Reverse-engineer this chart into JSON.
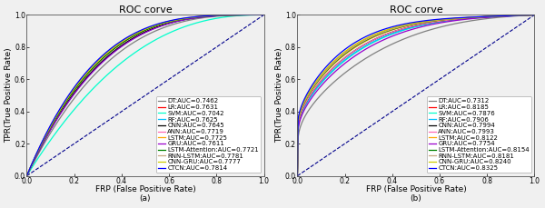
{
  "title": "ROC corve",
  "xlabel": "FRP (False Positive Rate)",
  "ylabel": "TPR(True Positive Rate)",
  "subplot_a_label": "(a)",
  "subplot_b_label": "(b)",
  "subplot_a": {
    "algorithms": [
      {
        "name": "DT",
        "auc": 0.7462,
        "color": "#808080",
        "shape": 0.0
      },
      {
        "name": "LR",
        "auc": 0.7631,
        "color": "#ff0000",
        "shape": 0.0
      },
      {
        "name": "SVM",
        "auc": 0.7042,
        "color": "#00ffcc",
        "shape": 0.0
      },
      {
        "name": "RF",
        "auc": 0.7625,
        "color": "#00bfff",
        "shape": 0.0
      },
      {
        "name": "CNN",
        "auc": 0.7645,
        "color": "#000000",
        "shape": 0.0
      },
      {
        "name": "ANN",
        "auc": 0.7719,
        "color": "#ff69b4",
        "shape": 0.0
      },
      {
        "name": "LSTM",
        "auc": 0.7725,
        "color": "#ffa500",
        "shape": 0.0
      },
      {
        "name": "GRU",
        "auc": 0.7611,
        "color": "#9900cc",
        "shape": 0.0
      },
      {
        "name": "LSTM-Attention",
        "auc": 0.7721,
        "color": "#008000",
        "shape": 0.0
      },
      {
        "name": "RNN-LSTM",
        "auc": 0.7781,
        "color": "#c8a882",
        "shape": 0.0
      },
      {
        "name": "CNN-GRU",
        "auc": 0.7777,
        "color": "#cccc00",
        "shape": 0.0
      },
      {
        "name": "CTCN",
        "auc": 0.7814,
        "color": "#0000ff",
        "shape": 0.0
      }
    ]
  },
  "subplot_b": {
    "algorithms": [
      {
        "name": "DT",
        "auc": 0.7312,
        "color": "#808080",
        "shape": 1.0
      },
      {
        "name": "LR",
        "auc": 0.8185,
        "color": "#ff0000",
        "shape": 1.0
      },
      {
        "name": "SVM",
        "auc": 0.7876,
        "color": "#00ffcc",
        "shape": 1.0
      },
      {
        "name": "RF",
        "auc": 0.7906,
        "color": "#00bfff",
        "shape": 1.0
      },
      {
        "name": "CNN",
        "auc": 0.7994,
        "color": "#000000",
        "shape": 1.0
      },
      {
        "name": "ANN",
        "auc": 0.7993,
        "color": "#ff69b4",
        "shape": 1.0
      },
      {
        "name": "LSTM",
        "auc": 0.8122,
        "color": "#ffa500",
        "shape": 1.0
      },
      {
        "name": "GRU",
        "auc": 0.7754,
        "color": "#9900cc",
        "shape": 1.0
      },
      {
        "name": "LSTM-Attention",
        "auc": 0.8154,
        "color": "#008000",
        "shape": 1.0
      },
      {
        "name": "RNN-LSTM",
        "auc": 0.8181,
        "color": "#c8a882",
        "shape": 1.0
      },
      {
        "name": "CNN-GRU",
        "auc": 0.824,
        "color": "#cccc00",
        "shape": 1.0
      },
      {
        "name": "CTCN",
        "auc": 0.8325,
        "color": "#0000ff",
        "shape": 1.0
      }
    ]
  },
  "diagonal_color": "#00008b",
  "background_color": "#f0f0f0",
  "legend_fontsize": 5.0,
  "axis_fontsize": 6.5,
  "title_fontsize": 8,
  "tick_fontsize": 5.5,
  "linewidth": 0.9
}
